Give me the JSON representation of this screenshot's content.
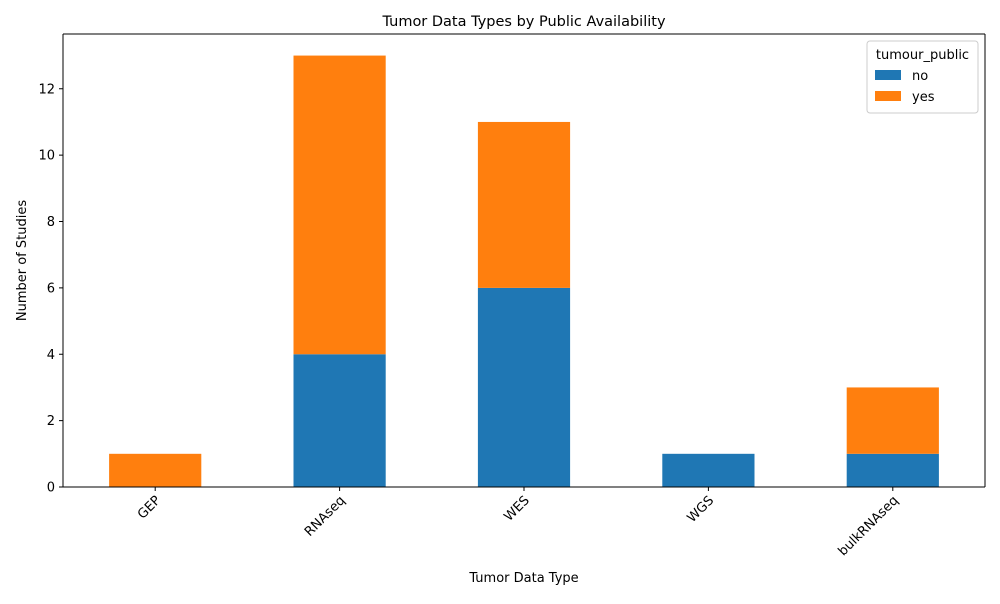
{
  "chart_data": {
    "type": "bar",
    "stacked": true,
    "title": "Tumor Data Types by Public Availability",
    "xlabel": "Tumor Data Type",
    "ylabel": "Number of Studies",
    "categories": [
      "GEP",
      "RNAseq",
      "WES",
      "WGS",
      "bulkRNAseq"
    ],
    "series": [
      {
        "name": "no",
        "color": "#1f77b4",
        "values": [
          0,
          4,
          6,
          1,
          1
        ]
      },
      {
        "name": "yes",
        "color": "#ff7f0e",
        "values": [
          1,
          9,
          5,
          0,
          2
        ]
      }
    ],
    "ylim": [
      0,
      13.65
    ],
    "yticks": [
      0,
      2,
      4,
      6,
      8,
      10,
      12
    ],
    "legend": {
      "title": "tumour_public",
      "placement": "top-right"
    },
    "grid": false,
    "xtick_rotation": 45
  }
}
